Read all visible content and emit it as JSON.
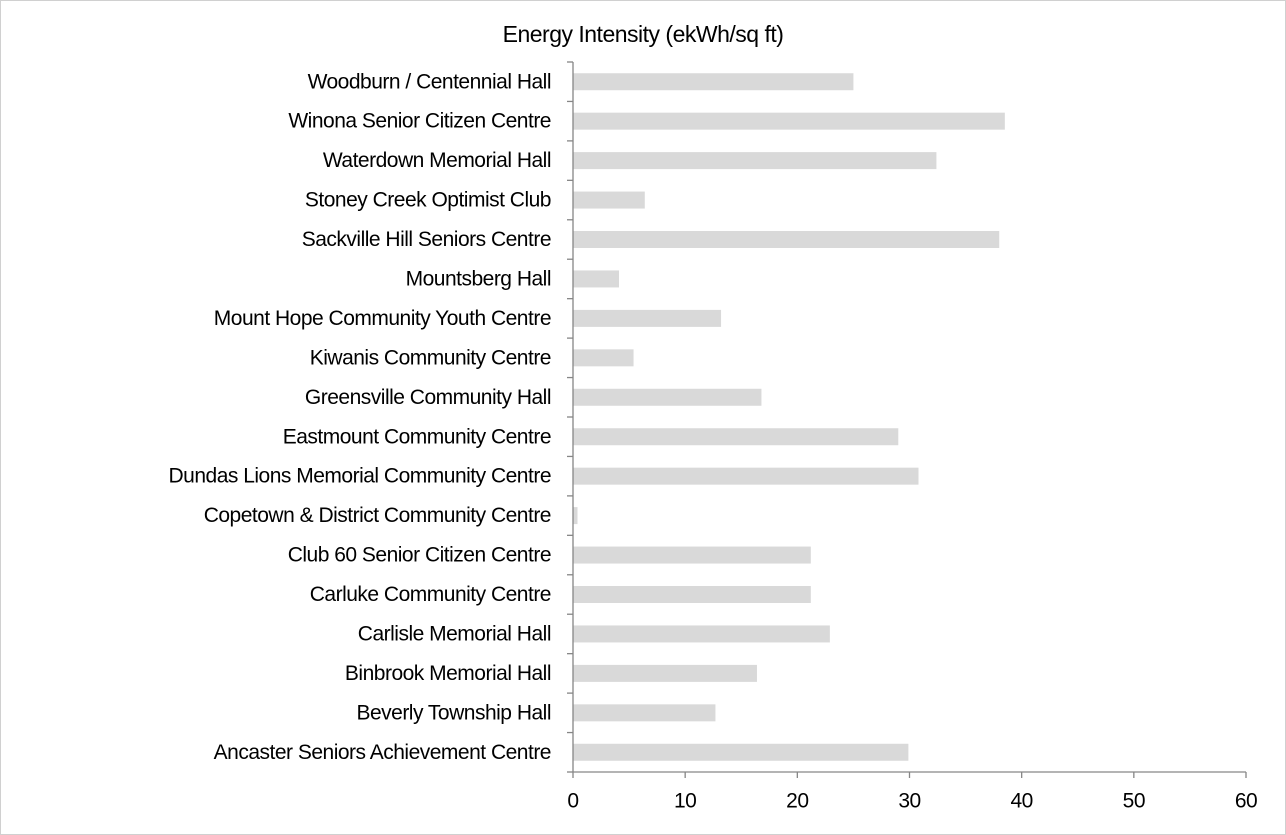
{
  "chart_data": {
    "type": "barh",
    "title": "Energy Intensity (ekWh/sq ft)",
    "categories": [
      "Woodburn / Centennial Hall",
      "Winona Senior Citizen Centre",
      "Waterdown Memorial Hall",
      "Stoney Creek Optimist Club",
      "Sackville Hill Seniors Centre",
      "Mountsberg Hall",
      "Mount Hope Community Youth Centre",
      "Kiwanis Community Centre",
      "Greensville Community Hall",
      "Eastmount Community Centre",
      "Dundas Lions Memorial Community Centre",
      "Copetown & District Community Centre",
      "Club 60 Senior Citizen Centre",
      "Carluke Community Centre",
      "Carlisle Memorial Hall",
      "Binbrook Memorial Hall",
      "Beverly Township Hall",
      "Ancaster Seniors Achievement Centre"
    ],
    "values": [
      25.0,
      38.5,
      32.4,
      6.4,
      38.0,
      4.1,
      13.2,
      5.4,
      16.8,
      29.0,
      30.8,
      0.4,
      21.2,
      21.2,
      22.9,
      16.4,
      12.7,
      29.9
    ],
    "color": "#d9d9d9",
    "xlim": [
      0,
      60
    ],
    "xticks": [
      0,
      10,
      20,
      30,
      40,
      50,
      60
    ],
    "grid": false
  }
}
